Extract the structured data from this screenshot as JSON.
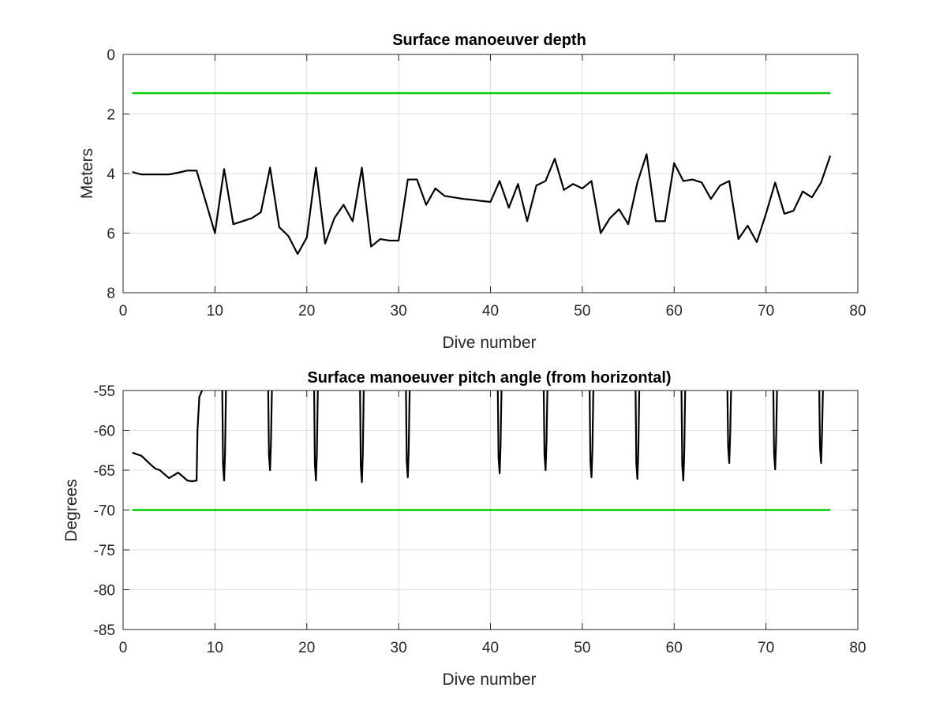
{
  "chart_data": [
    {
      "type": "line",
      "title": "Surface manoeuver depth",
      "xlabel": "Dive number",
      "ylabel": "Meters",
      "xlim": [
        0,
        80
      ],
      "ylim": [
        0,
        8
      ],
      "y_reversed": true,
      "xticks": [
        0,
        10,
        20,
        30,
        40,
        50,
        60,
        70,
        80
      ],
      "yticks": [
        0,
        2,
        4,
        6,
        8
      ],
      "grid": true,
      "series": [
        {
          "color": "#000000",
          "x": [
            1,
            2,
            3,
            4,
            5,
            6,
            7,
            8,
            9,
            10,
            11,
            12,
            13,
            14,
            15,
            16,
            17,
            18,
            19,
            20,
            21,
            22,
            23,
            24,
            25,
            26,
            27,
            28,
            29,
            30,
            31,
            32,
            33,
            34,
            35,
            36,
            37,
            38,
            39,
            40,
            41,
            42,
            43,
            44,
            45,
            46,
            47,
            48,
            49,
            50,
            51,
            52,
            53,
            54,
            55,
            56,
            57,
            58,
            59,
            60,
            61,
            62,
            63,
            64,
            65,
            66,
            67,
            68,
            69,
            70,
            71,
            72,
            73,
            74,
            75,
            76,
            77
          ],
          "y": [
            3.95,
            4.03,
            4.03,
            4.03,
            4.03,
            3.97,
            3.9,
            3.9,
            4.95,
            6.0,
            3.85,
            5.7,
            5.6,
            5.5,
            5.3,
            3.8,
            5.8,
            6.1,
            6.7,
            6.15,
            3.8,
            6.35,
            5.5,
            5.05,
            5.6,
            3.8,
            6.45,
            6.2,
            6.25,
            6.25,
            4.2,
            4.2,
            5.05,
            4.5,
            4.75,
            4.8,
            4.85,
            4.88,
            4.92,
            4.95,
            4.25,
            5.15,
            4.35,
            5.6,
            4.4,
            4.25,
            3.5,
            4.55,
            4.35,
            4.5,
            4.25,
            6.0,
            5.5,
            5.2,
            5.7,
            4.3,
            3.35,
            5.6,
            5.6,
            3.65,
            4.25,
            4.2,
            4.3,
            4.85,
            4.4,
            4.25,
            6.2,
            5.75,
            6.3,
            5.35,
            4.3,
            5.35,
            5.25,
            4.6,
            4.8,
            4.3,
            3.4
          ]
        },
        {
          "color": "#00cc00",
          "x": [
            1,
            77
          ],
          "y": [
            1.3,
            1.3
          ]
        }
      ]
    },
    {
      "type": "line",
      "title": "Surface manoeuver pitch angle (from horizontal)",
      "xlabel": "Dive number",
      "ylabel": "Degrees",
      "xlim": [
        0,
        80
      ],
      "ylim": [
        -85,
        -55
      ],
      "xticks": [
        0,
        10,
        20,
        30,
        40,
        50,
        60,
        70,
        80
      ],
      "yticks": [
        -55,
        -60,
        -65,
        -70,
        -75,
        -80,
        -85
      ],
      "grid": true,
      "series": [
        {
          "color": "#000000",
          "x": [
            1,
            2,
            3,
            3.5,
            4,
            5,
            6,
            7,
            7.5,
            8,
            8.1,
            8.3,
            8.6
          ],
          "y": [
            -62.8,
            -63.2,
            -64.3,
            -64.8,
            -65.0,
            -66.0,
            -65.3,
            -66.3,
            -66.4,
            -66.3,
            -60.0,
            -55.8,
            -55.0
          ],
          "spikes": [
            {
              "x": 11.0,
              "min": -66.3
            },
            {
              "x": 16.0,
              "min": -65.0
            },
            {
              "x": 21.0,
              "min": -66.3
            },
            {
              "x": 26.0,
              "min": -66.5
            },
            {
              "x": 31.0,
              "min": -65.9
            },
            {
              "x": 41.0,
              "min": -65.4
            },
            {
              "x": 46.0,
              "min": -65.0
            },
            {
              "x": 51.0,
              "min": -65.9
            },
            {
              "x": 56.0,
              "min": -66.1
            },
            {
              "x": 61.0,
              "min": -66.3
            },
            {
              "x": 66.0,
              "min": -64.1
            },
            {
              "x": 71.0,
              "min": -64.9
            },
            {
              "x": 76.0,
              "min": -64.1
            }
          ]
        },
        {
          "color": "#00cc00",
          "x": [
            1,
            77
          ],
          "y": [
            -70,
            -70
          ]
        }
      ]
    }
  ]
}
